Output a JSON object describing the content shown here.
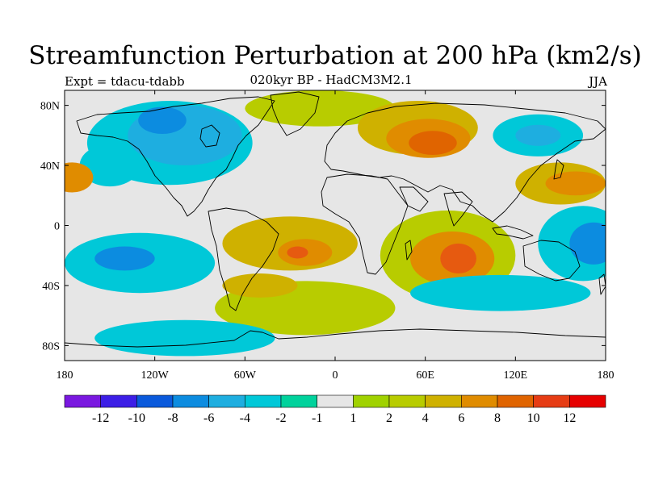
{
  "title": "Streamfunction Perturbation at 200 hPa (km2/s)",
  "subtitle_left": "Expt = tdacu-tdabb",
  "subtitle_center": "020kyr BP - HadCM3M2.1",
  "subtitle_right": "JJA",
  "map": {
    "projection": "cylindrical equidistant",
    "lon_range": [
      -180,
      180
    ],
    "lat_range": [
      -90,
      90
    ],
    "lat_ticks": [
      {
        "value": 80,
        "label": "80N"
      },
      {
        "value": 40,
        "label": "40N"
      },
      {
        "value": 0,
        "label": "0"
      },
      {
        "value": -40,
        "label": "40S"
      },
      {
        "value": -80,
        "label": "80S"
      }
    ],
    "lon_ticks": [
      {
        "value": -180,
        "label": "180"
      },
      {
        "value": -120,
        "label": "120W"
      },
      {
        "value": -60,
        "label": "60W"
      },
      {
        "value": 0,
        "label": "0"
      },
      {
        "value": 60,
        "label": "60E"
      },
      {
        "value": 120,
        "label": "120E"
      },
      {
        "value": 180,
        "label": "180"
      }
    ],
    "background_color": "#e6e6e6",
    "features": [
      {
        "name": "north-atlantic-positive",
        "lon": -10,
        "lat": 78,
        "rx": 50,
        "ry": 12,
        "color": "#b8cc00"
      },
      {
        "name": "siberia-high-outer",
        "lon": 55,
        "lat": 65,
        "rx": 40,
        "ry": 18,
        "color": "#cfb100"
      },
      {
        "name": "siberia-high-inner",
        "lon": 62,
        "lat": 58,
        "rx": 28,
        "ry": 13,
        "color": "#e08c00"
      },
      {
        "name": "siberia-high-core",
        "lon": 65,
        "lat": 55,
        "rx": 16,
        "ry": 8,
        "color": "#e06400"
      },
      {
        "name": "north-america-low-outer",
        "lon": -110,
        "lat": 55,
        "rx": 55,
        "ry": 28,
        "color": "#00c8d8"
      },
      {
        "name": "north-america-low-mid",
        "lon": -100,
        "lat": 60,
        "rx": 38,
        "ry": 20,
        "color": "#1eaee0"
      },
      {
        "name": "north-america-low-inner",
        "lon": -115,
        "lat": 70,
        "rx": 16,
        "ry": 9,
        "color": "#0c8ce0"
      },
      {
        "name": "pacific-nw-low",
        "lon": -150,
        "lat": 40,
        "rx": 20,
        "ry": 14,
        "color": "#00c8d8"
      },
      {
        "name": "east-siberia-low",
        "lon": 135,
        "lat": 60,
        "rx": 30,
        "ry": 14,
        "color": "#00c8d8"
      },
      {
        "name": "east-siberia-low-inner",
        "lon": 135,
        "lat": 60,
        "rx": 15,
        "ry": 7,
        "color": "#1eaee0"
      },
      {
        "name": "dateline-north-high",
        "lon": -175,
        "lat": 32,
        "rx": 14,
        "ry": 10,
        "color": "#e08c00"
      },
      {
        "name": "west-pacific-high-outer",
        "lon": 150,
        "lat": 28,
        "rx": 30,
        "ry": 14,
        "color": "#cfb100"
      },
      {
        "name": "west-pacific-high-inner",
        "lon": 160,
        "lat": 28,
        "rx": 20,
        "ry": 8,
        "color": "#e08c00"
      },
      {
        "name": "atlantic-tropical-high-outer",
        "lon": -30,
        "lat": -12,
        "rx": 45,
        "ry": 18,
        "color": "#cfb100"
      },
      {
        "name": "atlantic-tropical-high-inner",
        "lon": -20,
        "lat": -18,
        "rx": 18,
        "ry": 9,
        "color": "#e08c00"
      },
      {
        "name": "atlantic-tropical-high-core",
        "lon": -25,
        "lat": -18,
        "rx": 7,
        "ry": 4,
        "color": "#e65a10"
      },
      {
        "name": "indian-ocean-high-outer",
        "lon": 75,
        "lat": -20,
        "rx": 45,
        "ry": 30,
        "color": "#b8cc00"
      },
      {
        "name": "indian-ocean-high-mid",
        "lon": 78,
        "lat": -22,
        "rx": 28,
        "ry": 18,
        "color": "#e08c00"
      },
      {
        "name": "indian-ocean-high-core",
        "lon": 82,
        "lat": -22,
        "rx": 12,
        "ry": 10,
        "color": "#e65a10"
      },
      {
        "name": "south-pacific-low-outer",
        "lon": -130,
        "lat": -25,
        "rx": 50,
        "ry": 20,
        "color": "#00c8d8"
      },
      {
        "name": "south-pacific-low-inner",
        "lon": -140,
        "lat": -22,
        "rx": 20,
        "ry": 8,
        "color": "#0c8ce0"
      },
      {
        "name": "southwest-pacific-low-outer",
        "lon": 165,
        "lat": -12,
        "rx": 30,
        "ry": 25,
        "color": "#00c8d8"
      },
      {
        "name": "southwest-pacific-low-inner",
        "lon": 172,
        "lat": -12,
        "rx": 16,
        "ry": 14,
        "color": "#0c8ce0"
      },
      {
        "name": "south-midlat-positive",
        "lon": -20,
        "lat": -55,
        "rx": 60,
        "ry": 18,
        "color": "#b8cc00"
      },
      {
        "name": "south-midlat-positive-inner",
        "lon": -50,
        "lat": -40,
        "rx": 25,
        "ry": 8,
        "color": "#cfb100"
      },
      {
        "name": "southern-ocean-low",
        "lon": 110,
        "lat": -45,
        "rx": 60,
        "ry": 12,
        "color": "#00c8d8"
      },
      {
        "name": "antarctic-low",
        "lon": -100,
        "lat": -75,
        "rx": 60,
        "ry": 12,
        "color": "#00c8d8"
      }
    ]
  },
  "colorbar": {
    "labels": [
      "-12",
      "-10",
      "-8",
      "-6",
      "-4",
      "-2",
      "-1",
      "1",
      "2",
      "4",
      "6",
      "8",
      "10",
      "12"
    ],
    "colors": [
      "#7a18e0",
      "#3c1ee6",
      "#0a5adc",
      "#0c8ce0",
      "#1eaee0",
      "#00c8d8",
      "#00d29c",
      "#e6e6e6",
      "#a0d200",
      "#b8cc00",
      "#cfb100",
      "#e08c00",
      "#e06400",
      "#e63c14",
      "#e60000"
    ]
  }
}
